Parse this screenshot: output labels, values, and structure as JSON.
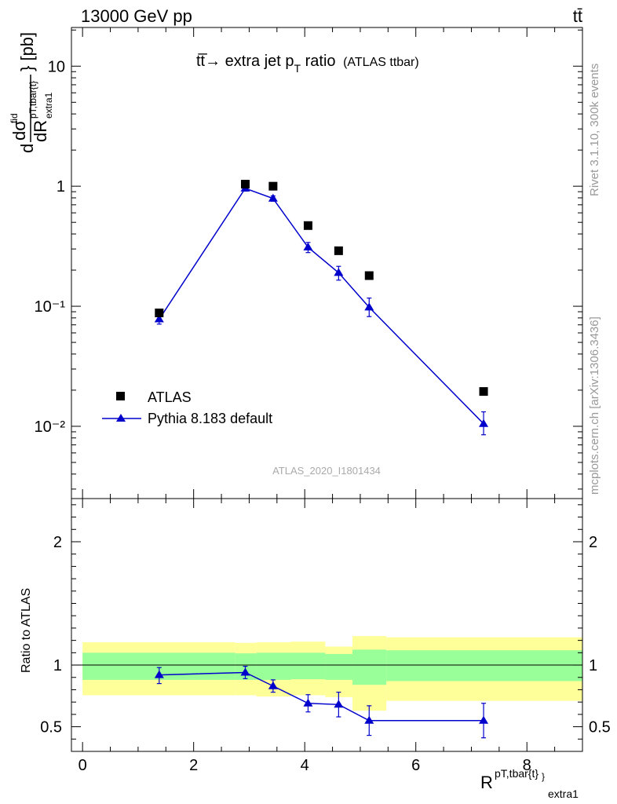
{
  "header": {
    "left": "13000 GeV pp",
    "right": "tt̄"
  },
  "side_labels": {
    "rivet": "Rivet 3.1.10,  300k events",
    "mcplots": "mcplots.cern.ch [arXiv:1306.3436]"
  },
  "analysis_tag": "ATLAS_2020_I1801434",
  "colors": {
    "data": "#000000",
    "mc": "#0000cc",
    "band_inner": "#99ff99",
    "band_outer": "#ffff99"
  },
  "chart_data": [
    {
      "type": "scatter",
      "title": "tt̅→ extra jet p",
      "title_sub": "T",
      "title_suffix": " ratio",
      "title_note": "(ATLAS ttbar)",
      "ylabel": "d dσ/dR [pb]",
      "yscale": "log",
      "ylim": [
        0.0025,
        21
      ],
      "xlim": [
        -0.2,
        9.0
      ],
      "yticks": [
        {
          "value": 10,
          "label": "10"
        },
        {
          "value": 1,
          "label": "1"
        },
        {
          "value": 0.1,
          "label": "10⁻¹"
        },
        {
          "value": 0.01,
          "label": "10⁻²"
        }
      ],
      "legend_position": "bottom-left",
      "series": [
        {
          "name": "ATLAS",
          "marker": "square",
          "x": [
            1.38,
            2.93,
            3.43,
            4.06,
            4.61,
            5.16,
            7.22
          ],
          "y": [
            0.088,
            1.04,
            1.0,
            0.47,
            0.29,
            0.18,
            0.0195
          ]
        },
        {
          "name": "Pythia 8.183 default",
          "marker": "triangle",
          "x": [
            1.38,
            2.93,
            3.43,
            4.06,
            4.61,
            5.16,
            7.22
          ],
          "y": [
            0.078,
            0.96,
            0.79,
            0.31,
            0.19,
            0.098,
            0.0105
          ],
          "yerr_low": [
            0.071,
            0.91,
            0.75,
            0.28,
            0.165,
            0.082,
            0.0085
          ],
          "yerr_high": [
            0.085,
            1.01,
            0.83,
            0.34,
            0.215,
            0.117,
            0.0132
          ]
        }
      ]
    },
    {
      "type": "line",
      "ylabel": "Ratio to ATLAS",
      "xlabel": "R",
      "xlabel_sup": "pT,tbar{t}",
      "xlabel_sub": "extra1",
      "xlim": [
        -0.2,
        9.0
      ],
      "ylim": [
        0.3,
        2.35
      ],
      "xticks": [
        0,
        2,
        4,
        6,
        8
      ],
      "yticks": [
        0.5,
        1,
        2
      ],
      "reference": 1,
      "bands": {
        "edges": [
          0,
          2.75,
          3.13,
          3.75,
          4.37,
          4.86,
          5.47,
          9.0
        ],
        "inner_low": [
          0.88,
          0.88,
          0.88,
          0.885,
          0.88,
          0.84,
          0.87
        ],
        "inner_high": [
          1.1,
          1.095,
          1.1,
          1.1,
          1.09,
          1.125,
          1.12
        ],
        "outer_low": [
          0.755,
          0.755,
          0.745,
          0.755,
          0.74,
          0.63,
          0.71
        ],
        "outer_high": [
          1.185,
          1.18,
          1.185,
          1.19,
          1.15,
          1.235,
          1.225
        ]
      },
      "series": [
        {
          "name": "Pythia 8.183 default",
          "x": [
            1.38,
            2.93,
            3.43,
            4.06,
            4.61,
            5.16,
            7.22
          ],
          "y": [
            0.92,
            0.94,
            0.83,
            0.69,
            0.68,
            0.55,
            0.55
          ],
          "yerr_low": [
            0.85,
            0.89,
            0.78,
            0.62,
            0.58,
            0.43,
            0.41
          ],
          "yerr_high": [
            0.98,
            0.99,
            0.88,
            0.76,
            0.78,
            0.67,
            0.69
          ]
        }
      ]
    }
  ]
}
